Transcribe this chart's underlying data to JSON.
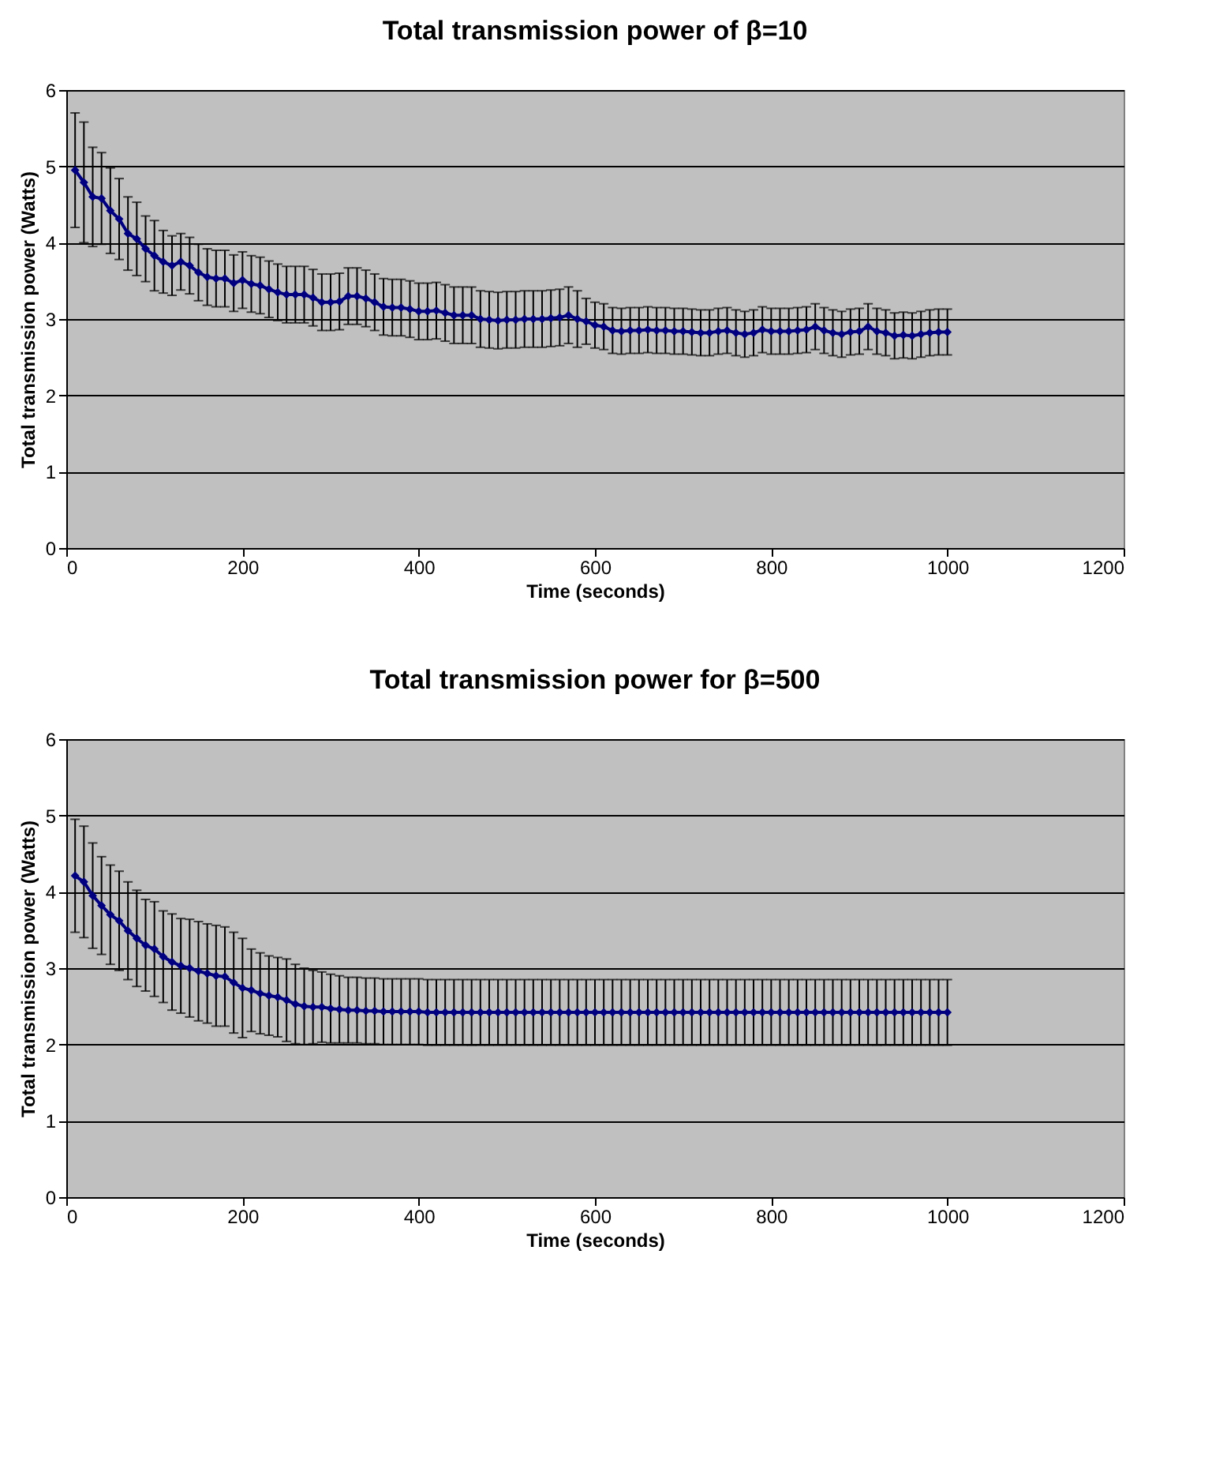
{
  "chart_data": [
    {
      "type": "line",
      "title": "Total transmission power of β=10",
      "xlabel": "Time (seconds)",
      "ylabel": "Total transmission power (Watts)",
      "x": [
        10,
        20,
        30,
        40,
        50,
        60,
        70,
        80,
        90,
        100,
        110,
        120,
        130,
        140,
        150,
        160,
        170,
        180,
        190,
        200,
        210,
        220,
        230,
        240,
        250,
        260,
        270,
        280,
        290,
        300,
        310,
        320,
        330,
        340,
        350,
        360,
        370,
        380,
        390,
        400,
        410,
        420,
        430,
        440,
        450,
        460,
        470,
        480,
        490,
        500,
        510,
        520,
        530,
        540,
        550,
        560,
        570,
        580,
        590,
        600,
        610,
        620,
        630,
        640,
        650,
        660,
        670,
        680,
        690,
        700,
        710,
        720,
        730,
        740,
        750,
        760,
        770,
        780,
        790,
        800,
        810,
        820,
        830,
        840,
        850,
        860,
        870,
        880,
        890,
        900,
        910,
        920,
        930,
        940,
        950,
        960,
        970,
        980,
        990,
        1000
      ],
      "series": [
        {
          "color": "#000080",
          "values": [
            4.95,
            4.79,
            4.6,
            4.58,
            4.42,
            4.31,
            4.12,
            4.05,
            3.92,
            3.83,
            3.75,
            3.7,
            3.75,
            3.7,
            3.61,
            3.55,
            3.53,
            3.53,
            3.47,
            3.51,
            3.46,
            3.44,
            3.39,
            3.35,
            3.32,
            3.32,
            3.32,
            3.28,
            3.22,
            3.22,
            3.23,
            3.3,
            3.3,
            3.27,
            3.22,
            3.16,
            3.15,
            3.15,
            3.13,
            3.1,
            3.1,
            3.11,
            3.08,
            3.05,
            3.05,
            3.05,
            3.0,
            2.99,
            2.98,
            2.99,
            2.99,
            3.0,
            3.0,
            3.0,
            3.01,
            3.02,
            3.05,
            3.0,
            2.97,
            2.92,
            2.9,
            2.85,
            2.84,
            2.85,
            2.85,
            2.86,
            2.85,
            2.85,
            2.84,
            2.84,
            2.83,
            2.82,
            2.82,
            2.84,
            2.85,
            2.82,
            2.8,
            2.82,
            2.86,
            2.84,
            2.84,
            2.84,
            2.85,
            2.86,
            2.9,
            2.85,
            2.82,
            2.8,
            2.83,
            2.84,
            2.9,
            2.84,
            2.82,
            2.78,
            2.79,
            2.78,
            2.8,
            2.82,
            2.83,
            2.83
          ],
          "errors": [
            0.75,
            0.79,
            0.65,
            0.6,
            0.56,
            0.53,
            0.48,
            0.48,
            0.43,
            0.46,
            0.41,
            0.39,
            0.37,
            0.37,
            0.37,
            0.37,
            0.37,
            0.37,
            0.37,
            0.37,
            0.37,
            0.37,
            0.37,
            0.37,
            0.37,
            0.37,
            0.37,
            0.37,
            0.37,
            0.37,
            0.37,
            0.37,
            0.37,
            0.37,
            0.37,
            0.37,
            0.37,
            0.37,
            0.37,
            0.37,
            0.37,
            0.37,
            0.37,
            0.37,
            0.37,
            0.37,
            0.37,
            0.37,
            0.37,
            0.37,
            0.37,
            0.37,
            0.37,
            0.37,
            0.37,
            0.37,
            0.37,
            0.37,
            0.3,
            0.3,
            0.3,
            0.3,
            0.3,
            0.3,
            0.3,
            0.3,
            0.3,
            0.3,
            0.3,
            0.3,
            0.3,
            0.3,
            0.3,
            0.3,
            0.3,
            0.3,
            0.3,
            0.3,
            0.3,
            0.3,
            0.3,
            0.3,
            0.3,
            0.3,
            0.3,
            0.3,
            0.3,
            0.3,
            0.3,
            0.3,
            0.3,
            0.3,
            0.3,
            0.3,
            0.3,
            0.3,
            0.3,
            0.3,
            0.3,
            0.3
          ]
        }
      ],
      "xlim": [
        0,
        1200
      ],
      "xticks": [
        0,
        200,
        400,
        600,
        800,
        1000,
        1200
      ],
      "ylim": [
        0,
        6
      ],
      "yticks": [
        0,
        1,
        2,
        3,
        4,
        5,
        6
      ],
      "grid": "y",
      "marker": "diamond",
      "line_style": "solid"
    },
    {
      "type": "line",
      "title": "Total transmission power for β=500",
      "xlabel": "Time (seconds)",
      "ylabel": "Total transmission power (Watts)",
      "x": [
        10,
        20,
        30,
        40,
        50,
        60,
        70,
        80,
        90,
        100,
        110,
        120,
        130,
        140,
        150,
        160,
        170,
        180,
        190,
        200,
        210,
        220,
        230,
        240,
        250,
        260,
        270,
        280,
        290,
        300,
        310,
        320,
        330,
        340,
        350,
        360,
        370,
        380,
        390,
        400,
        410,
        420,
        430,
        440,
        450,
        460,
        470,
        480,
        490,
        500,
        510,
        520,
        530,
        540,
        550,
        560,
        570,
        580,
        590,
        600,
        610,
        620,
        630,
        640,
        650,
        660,
        670,
        680,
        690,
        700,
        710,
        720,
        730,
        740,
        750,
        760,
        770,
        780,
        790,
        800,
        810,
        820,
        830,
        840,
        850,
        860,
        870,
        880,
        890,
        900,
        910,
        920,
        930,
        940,
        950,
        960,
        970,
        980,
        990,
        1000
      ],
      "series": [
        {
          "color": "#000080",
          "values": [
            4.21,
            4.13,
            3.95,
            3.82,
            3.7,
            3.62,
            3.49,
            3.39,
            3.3,
            3.25,
            3.15,
            3.08,
            3.03,
            3.0,
            2.96,
            2.93,
            2.9,
            2.89,
            2.81,
            2.74,
            2.71,
            2.67,
            2.64,
            2.62,
            2.58,
            2.53,
            2.5,
            2.49,
            2.49,
            2.47,
            2.46,
            2.45,
            2.45,
            2.44,
            2.44,
            2.43,
            2.43,
            2.43,
            2.43,
            2.43,
            2.42,
            2.42,
            2.42,
            2.42,
            2.42,
            2.42,
            2.42,
            2.42,
            2.42,
            2.42,
            2.42,
            2.42,
            2.42,
            2.42,
            2.42,
            2.42,
            2.42,
            2.42,
            2.42,
            2.42,
            2.42,
            2.42,
            2.42,
            2.42,
            2.42,
            2.42,
            2.42,
            2.42,
            2.42,
            2.42,
            2.42,
            2.42,
            2.42,
            2.42,
            2.42,
            2.42,
            2.42,
            2.42,
            2.42,
            2.42,
            2.42,
            2.42,
            2.42,
            2.42,
            2.42,
            2.42,
            2.42,
            2.42,
            2.42,
            2.42,
            2.42,
            2.42,
            2.42,
            2.42,
            2.42,
            2.42,
            2.42,
            2.42,
            2.42,
            2.42
          ],
          "errors": [
            0.74,
            0.73,
            0.69,
            0.64,
            0.65,
            0.65,
            0.64,
            0.63,
            0.6,
            0.62,
            0.6,
            0.63,
            0.62,
            0.64,
            0.65,
            0.65,
            0.66,
            0.65,
            0.66,
            0.65,
            0.54,
            0.53,
            0.52,
            0.52,
            0.54,
            0.52,
            0.5,
            0.48,
            0.46,
            0.45,
            0.44,
            0.43,
            0.43,
            0.43,
            0.43,
            0.43,
            0.43,
            0.43,
            0.43,
            0.43,
            0.43,
            0.43,
            0.43,
            0.43,
            0.43,
            0.43,
            0.43,
            0.43,
            0.43,
            0.43,
            0.43,
            0.43,
            0.43,
            0.43,
            0.43,
            0.43,
            0.43,
            0.43,
            0.43,
            0.43,
            0.43,
            0.43,
            0.43,
            0.43,
            0.43,
            0.43,
            0.43,
            0.43,
            0.43,
            0.43,
            0.43,
            0.43,
            0.43,
            0.43,
            0.43,
            0.43,
            0.43,
            0.43,
            0.43,
            0.43,
            0.43,
            0.43,
            0.43,
            0.43,
            0.43,
            0.43,
            0.43,
            0.43,
            0.43,
            0.43,
            0.43,
            0.43,
            0.43,
            0.43,
            0.43,
            0.43,
            0.43,
            0.43,
            0.43,
            0.43
          ]
        }
      ],
      "xlim": [
        0,
        1200
      ],
      "xticks": [
        0,
        200,
        400,
        600,
        800,
        1000,
        1200
      ],
      "ylim": [
        0,
        6
      ],
      "yticks": [
        0,
        1,
        2,
        3,
        4,
        5,
        6
      ],
      "grid": "y",
      "marker": "diamond",
      "line_style": "solid"
    }
  ]
}
